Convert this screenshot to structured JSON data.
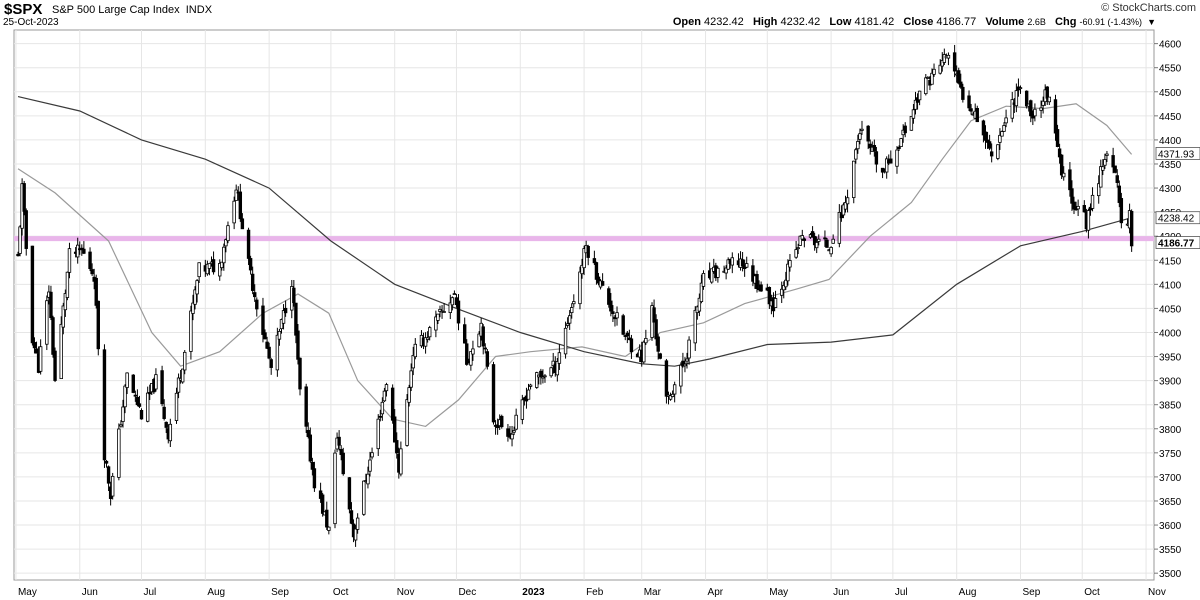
{
  "header": {
    "symbol": "$SPX",
    "description": "S&P 500 Large Cap Index",
    "exchange": "INDX",
    "date": "25-Oct-2023",
    "open_label": "Open",
    "open": "4232.42",
    "high_label": "High",
    "high": "4232.42",
    "low_label": "Low",
    "low": "4181.42",
    "close_label": "Close",
    "close": "4186.77",
    "volume_label": "Volume",
    "volume": "2.6B",
    "chg_label": "Chg",
    "chg": "-60.91 (-1.43%)",
    "brand": "© StockCharts.com"
  },
  "colors": {
    "candle": "#000000",
    "ma_fast": "#9a9a9a",
    "ma_slow": "#3a3a3a",
    "support": "#e9b5ea",
    "grid": "#e6e6e6",
    "marker_bg": "#ffffff"
  },
  "chart_data": {
    "type": "candlestick",
    "title": "$SPX S&P 500 Large Cap Index INDX",
    "ylim": [
      3490,
      4620
    ],
    "y_ticks": [
      3500,
      3550,
      3600,
      3650,
      3700,
      3750,
      3800,
      3850,
      3900,
      3950,
      4000,
      4050,
      4100,
      4150,
      4200,
      4250,
      4300,
      4350,
      4400,
      4450,
      4500,
      4550,
      4600
    ],
    "x_tick_labels": [
      "May",
      "Jun",
      "Jul",
      "Aug",
      "Sep",
      "Oct",
      "Nov",
      "Dec",
      "2023",
      "Feb",
      "Mar",
      "Apr",
      "May",
      "Jun",
      "Jul",
      "Aug",
      "Sep",
      "Oct",
      "Nov"
    ],
    "x_months": [
      "2022-05",
      "2022-06",
      "2022-07",
      "2022-08",
      "2022-09",
      "2022-10",
      "2022-11",
      "2022-12",
      "2023-01",
      "2023-02",
      "2023-03",
      "2023-04",
      "2023-05",
      "2023-06",
      "2023-07",
      "2023-08",
      "2023-09",
      "2023-10",
      "2023-11"
    ],
    "close_path": [
      [
        "2022-05-02",
        4155
      ],
      [
        "2022-05-04",
        4300
      ],
      [
        "2022-05-09",
        3990
      ],
      [
        "2022-05-12",
        3930
      ],
      [
        "2022-05-17",
        4090
      ],
      [
        "2022-05-20",
        3900
      ],
      [
        "2022-05-27",
        4160
      ],
      [
        "2022-06-02",
        4170
      ],
      [
        "2022-06-08",
        4120
      ],
      [
        "2022-06-13",
        3750
      ],
      [
        "2022-06-16",
        3665
      ],
      [
        "2022-06-24",
        3910
      ],
      [
        "2022-07-01",
        3830
      ],
      [
        "2022-07-08",
        3900
      ],
      [
        "2022-07-14",
        3790
      ],
      [
        "2022-07-22",
        3960
      ],
      [
        "2022-07-29",
        4130
      ],
      [
        "2022-08-08",
        4140
      ],
      [
        "2022-08-16",
        4305
      ],
      [
        "2022-08-22",
        4140
      ],
      [
        "2022-08-26",
        4060
      ],
      [
        "2022-09-02",
        3925
      ],
      [
        "2022-09-12",
        4110
      ],
      [
        "2022-09-16",
        3875
      ],
      [
        "2022-09-23",
        3690
      ],
      [
        "2022-09-30",
        3590
      ],
      [
        "2022-10-04",
        3790
      ],
      [
        "2022-10-12",
        3580
      ],
      [
        "2022-10-17",
        3680
      ],
      [
        "2022-10-21",
        3750
      ],
      [
        "2022-10-28",
        3900
      ],
      [
        "2022-11-03",
        3720
      ],
      [
        "2022-11-10",
        3960
      ],
      [
        "2022-11-16",
        3990
      ],
      [
        "2022-11-30",
        4080
      ],
      [
        "2022-12-06",
        3940
      ],
      [
        "2022-12-13",
        4020
      ],
      [
        "2022-12-19",
        3820
      ],
      [
        "2022-12-28",
        3790
      ],
      [
        "2023-01-06",
        3895
      ],
      [
        "2023-01-18",
        3930
      ],
      [
        "2023-01-27",
        4070
      ],
      [
        "2023-02-02",
        4180
      ],
      [
        "2023-02-10",
        4090
      ],
      [
        "2023-02-21",
        3990
      ],
      [
        "2023-03-01",
        3950
      ],
      [
        "2023-03-06",
        4050
      ],
      [
        "2023-03-13",
        3855
      ],
      [
        "2023-03-22",
        3940
      ],
      [
        "2023-03-31",
        4110
      ],
      [
        "2023-04-18",
        4150
      ],
      [
        "2023-05-04",
        4060
      ],
      [
        "2023-05-18",
        4200
      ],
      [
        "2023-05-31",
        4180
      ],
      [
        "2023-06-08",
        4270
      ],
      [
        "2023-06-15",
        4420
      ],
      [
        "2023-06-26",
        4330
      ],
      [
        "2023-07-06",
        4410
      ],
      [
        "2023-07-14",
        4500
      ],
      [
        "2023-07-21",
        4540
      ],
      [
        "2023-07-28",
        4580
      ],
      [
        "2023-08-03",
        4500
      ],
      [
        "2023-08-10",
        4460
      ],
      [
        "2023-08-18",
        4370
      ],
      [
        "2023-08-31",
        4510
      ],
      [
        "2023-09-07",
        4450
      ],
      [
        "2023-09-14",
        4500
      ],
      [
        "2023-09-21",
        4330
      ],
      [
        "2023-09-27",
        4270
      ],
      [
        "2023-10-03",
        4230
      ],
      [
        "2023-10-12",
        4370
      ],
      [
        "2023-10-18",
        4315
      ],
      [
        "2023-10-20",
        4225
      ],
      [
        "2023-10-24",
        4245
      ],
      [
        "2023-10-25",
        4186.77
      ]
    ],
    "ma_fast_path": [
      [
        "2022-05-02",
        4340
      ],
      [
        "2022-05-20",
        4290
      ],
      [
        "2022-06-15",
        4190
      ],
      [
        "2022-07-06",
        4000
      ],
      [
        "2022-07-20",
        3930
      ],
      [
        "2022-08-08",
        3960
      ],
      [
        "2022-08-29",
        4040
      ],
      [
        "2022-09-15",
        4080
      ],
      [
        "2022-09-30",
        4040
      ],
      [
        "2022-10-14",
        3900
      ],
      [
        "2022-10-31",
        3820
      ],
      [
        "2022-11-16",
        3805
      ],
      [
        "2022-12-02",
        3860
      ],
      [
        "2022-12-20",
        3950
      ],
      [
        "2023-01-06",
        3960
      ],
      [
        "2023-01-31",
        3970
      ],
      [
        "2023-02-21",
        3950
      ],
      [
        "2023-03-10",
        4000
      ],
      [
        "2023-03-31",
        4020
      ],
      [
        "2023-04-20",
        4060
      ],
      [
        "2023-05-15",
        4090
      ],
      [
        "2023-05-31",
        4110
      ],
      [
        "2023-06-20",
        4200
      ],
      [
        "2023-07-10",
        4270
      ],
      [
        "2023-07-25",
        4360
      ],
      [
        "2023-08-08",
        4440
      ],
      [
        "2023-08-25",
        4470
      ],
      [
        "2023-09-12",
        4465
      ],
      [
        "2023-09-28",
        4475
      ],
      [
        "2023-10-13",
        4430
      ],
      [
        "2023-10-25",
        4370
      ]
    ],
    "ma_slow_path": [
      [
        "2022-05-02",
        4490
      ],
      [
        "2022-06-01",
        4460
      ],
      [
        "2022-07-01",
        4400
      ],
      [
        "2022-08-01",
        4360
      ],
      [
        "2022-09-01",
        4300
      ],
      [
        "2022-10-01",
        4190
      ],
      [
        "2022-11-01",
        4100
      ],
      [
        "2022-12-01",
        4050
      ],
      [
        "2023-01-01",
        4000
      ],
      [
        "2023-02-01",
        3960
      ],
      [
        "2023-03-01",
        3935
      ],
      [
        "2023-03-17",
        3930
      ],
      [
        "2023-04-03",
        3945
      ],
      [
        "2023-05-01",
        3975
      ],
      [
        "2023-06-01",
        3980
      ],
      [
        "2023-07-01",
        3995
      ],
      [
        "2023-08-01",
        4100
      ],
      [
        "2023-09-01",
        4180
      ],
      [
        "2023-10-01",
        4210
      ],
      [
        "2023-10-25",
        4238.42
      ]
    ],
    "support_level": 4195,
    "price_markers": [
      {
        "label": "4371.93",
        "value": 4371.93,
        "series": "ma_fast",
        "bold": false
      },
      {
        "label": "4238.42",
        "value": 4238.42,
        "series": "ma_slow",
        "bold": false
      },
      {
        "label": "4186.77",
        "value": 4186.77,
        "series": "close",
        "bold": true
      }
    ],
    "grid": true
  }
}
